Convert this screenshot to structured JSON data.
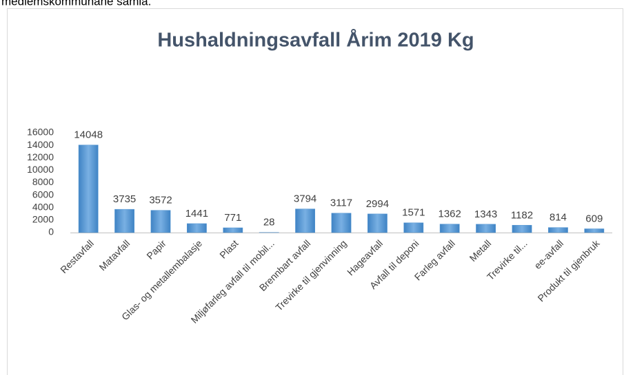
{
  "header_text": "medlemskommunane samla.",
  "chart_data": {
    "type": "bar",
    "title": "Hushaldningsavfall  Årim 2019 Kg",
    "categories": [
      "Restavfall",
      "Matavfall",
      "Papir",
      "Glas- og metallembalasje",
      "Plast",
      "Miljøfarleg avfall til mobil...",
      "Brennbart avfall",
      "Trevirke til gjenvinning",
      "Hageavfall",
      "Avfall til deponi",
      "Farleg avfall",
      "Metall",
      "Trevirke til...",
      "ee-avfall",
      "Produkt til gjenbruk"
    ],
    "values": [
      14048,
      3735,
      3572,
      1441,
      771,
      28,
      3794,
      3117,
      2994,
      1571,
      1362,
      1343,
      1182,
      814,
      609
    ],
    "color": "#5b9bd5",
    "ylim": [
      0,
      16000
    ],
    "yticks": [
      0,
      2000,
      4000,
      6000,
      8000,
      10000,
      12000,
      14000,
      16000
    ],
    "grid": false
  }
}
